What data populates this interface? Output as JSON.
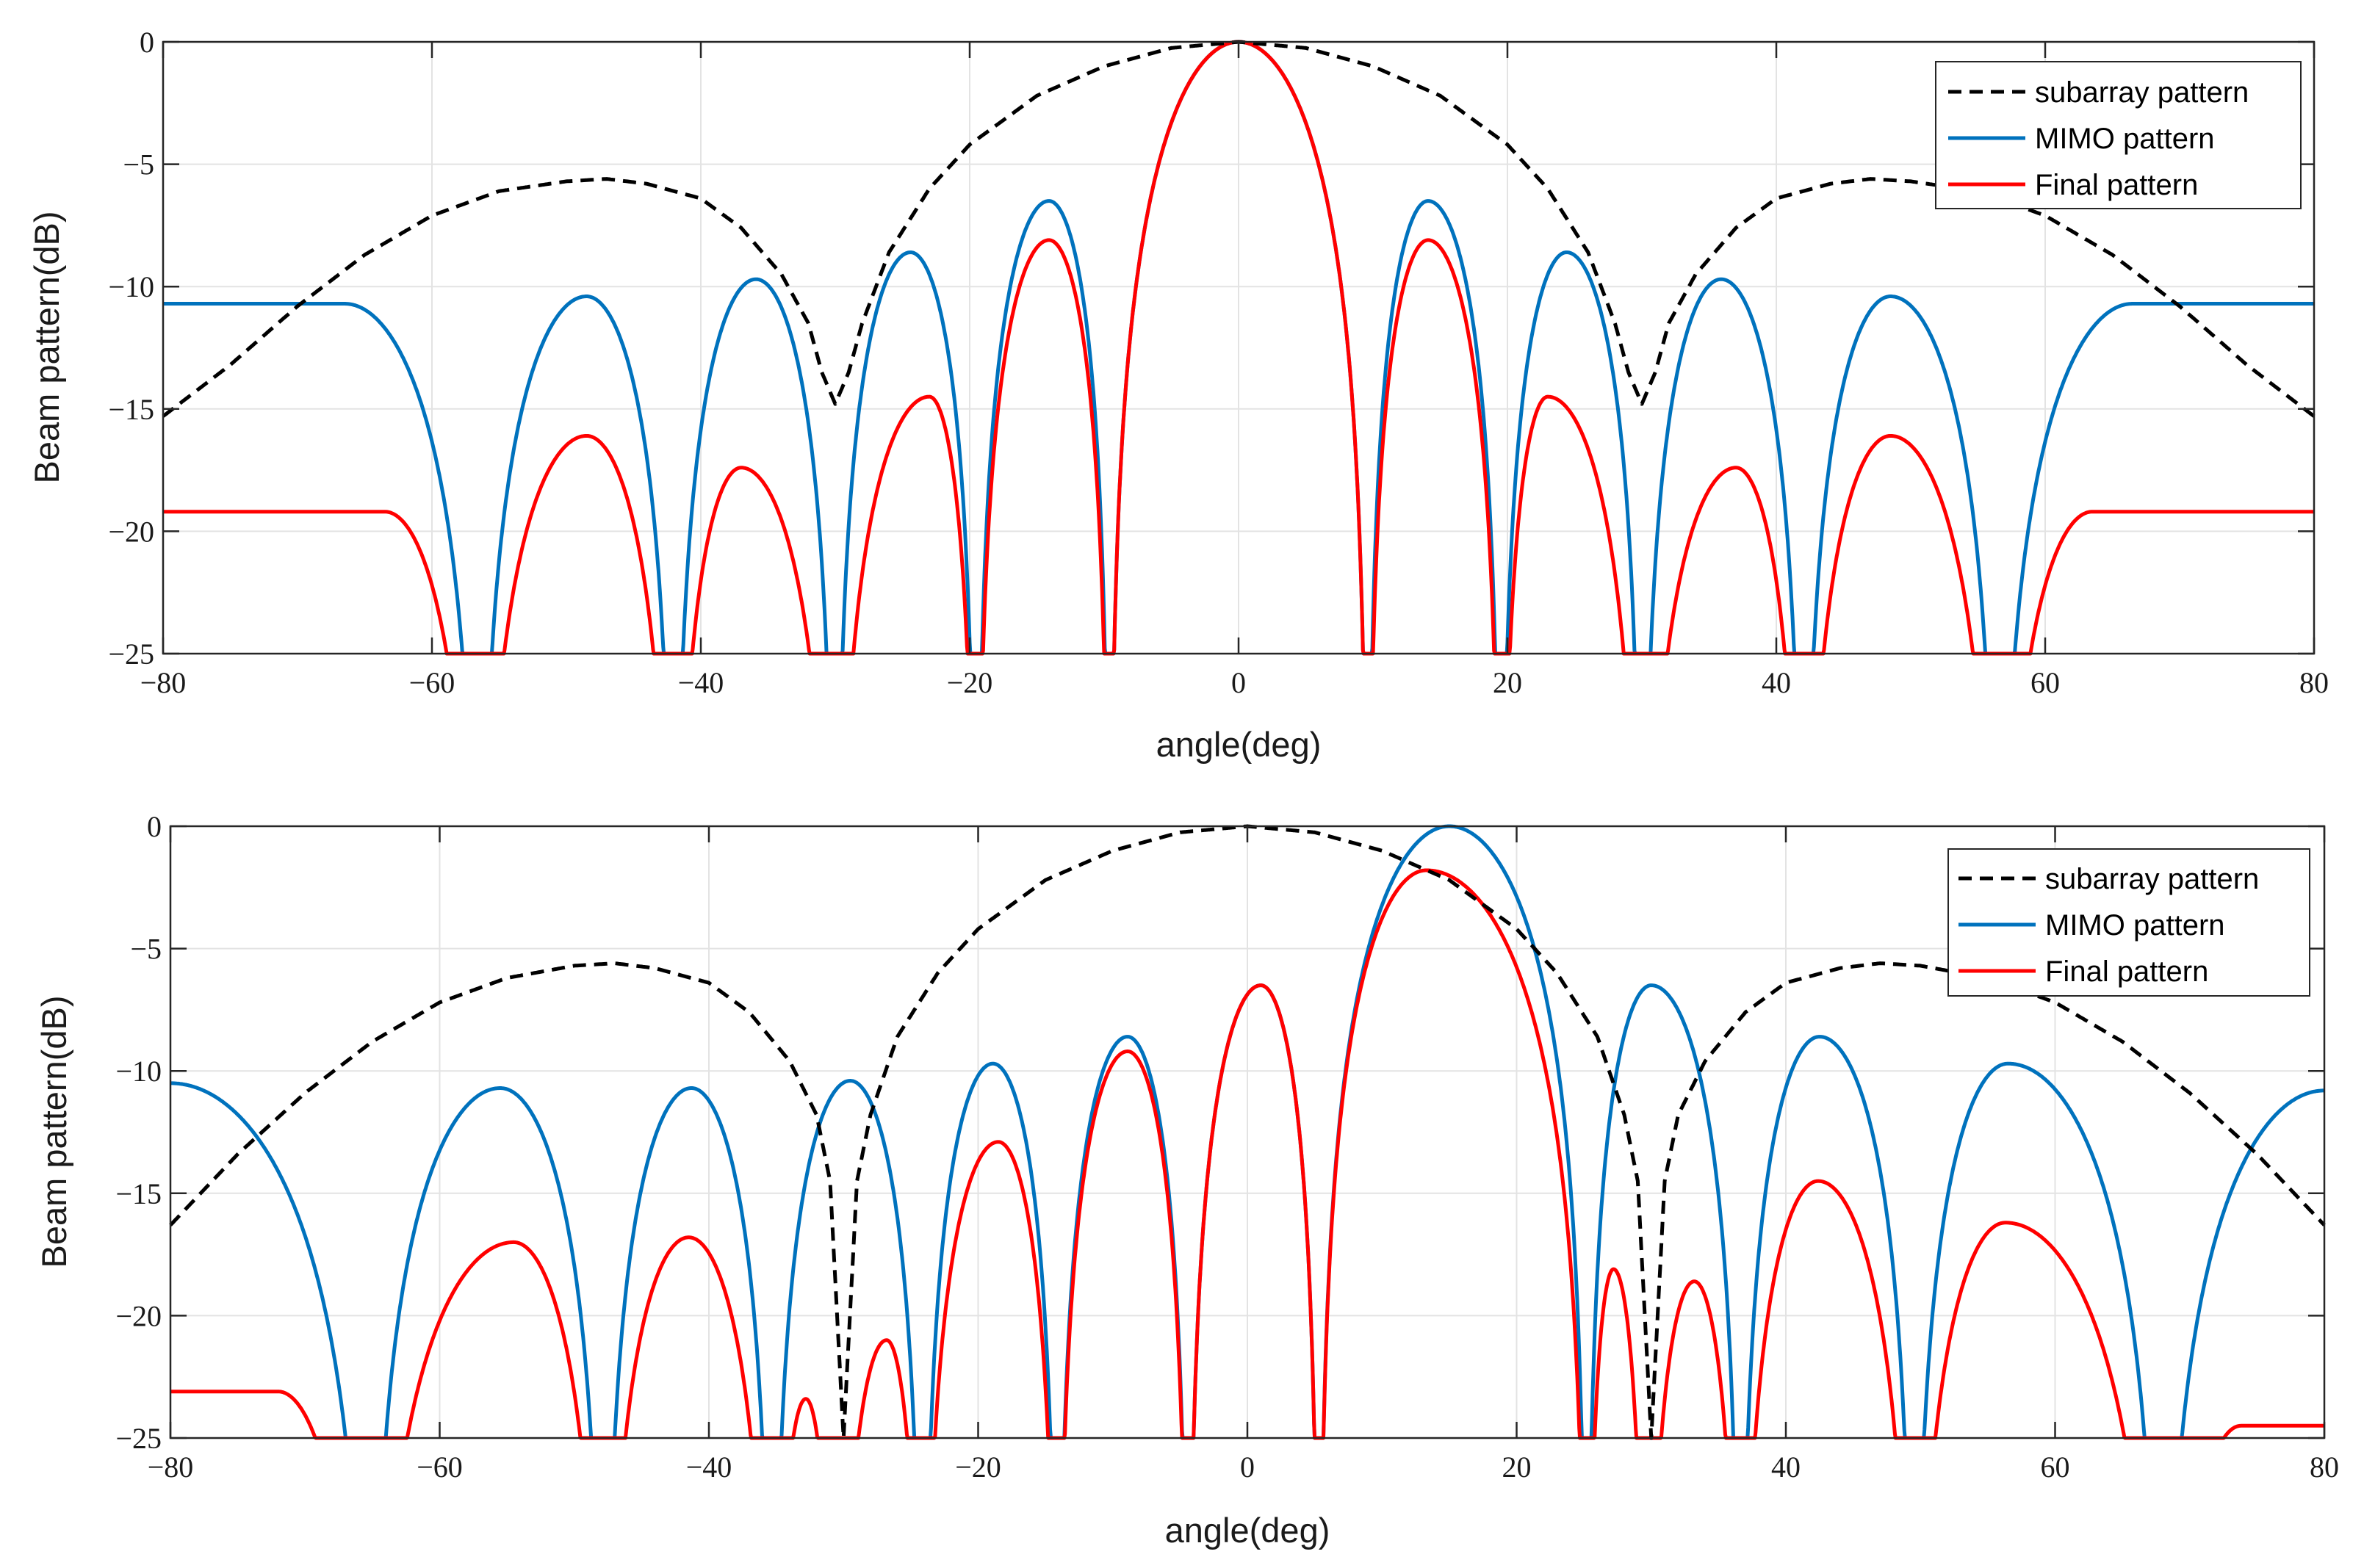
{
  "chart_data": [
    {
      "type": "line",
      "title": "",
      "xlabel": "angle(deg)",
      "ylabel": "Beam pattern(dB)",
      "xlim": [
        -80,
        80
      ],
      "ylim": [
        -25,
        0
      ],
      "xticks": [
        -80,
        -60,
        -40,
        -20,
        0,
        20,
        40,
        60,
        80
      ],
      "yticks": [
        -25,
        -20,
        -15,
        -10,
        -5,
        0
      ],
      "xtick_labels": [
        "−80",
        "−60",
        "−40",
        "−20",
        "0",
        "20",
        "40",
        "60",
        "80"
      ],
      "ytick_labels": [
        "−25",
        "−20",
        "−15",
        "−10",
        "−5",
        "0"
      ],
      "grid": true,
      "legend_position": "top-right",
      "steer_angle_deg": 0,
      "series": [
        {
          "name": "subarray pattern",
          "color": "#000000",
          "style": "dashed",
          "x": [
            -80,
            -75,
            -70,
            -65,
            -60,
            -55,
            -50,
            -47,
            -44,
            -40,
            -37,
            -34,
            -32,
            -31,
            -30,
            -29,
            -28,
            -26,
            -23,
            -20,
            -15,
            -10,
            -5,
            0,
            5,
            10,
            15,
            20,
            23,
            26,
            28,
            29,
            30,
            31,
            32,
            34,
            37,
            40,
            44,
            47,
            50,
            55,
            60,
            65,
            70,
            75,
            80
          ],
          "y": [
            -15.3,
            -13.2,
            -10.8,
            -8.7,
            -7.1,
            -6.1,
            -5.7,
            -5.6,
            -5.8,
            -6.4,
            -7.6,
            -9.5,
            -11.5,
            -13.5,
            -14.8,
            -13.5,
            -11.5,
            -8.6,
            -6.0,
            -4.2,
            -2.2,
            -1.0,
            -0.25,
            0,
            -0.25,
            -1.0,
            -2.2,
            -4.2,
            -6.0,
            -8.6,
            -11.5,
            -13.5,
            -14.8,
            -13.5,
            -11.5,
            -9.5,
            -7.6,
            -6.4,
            -5.8,
            -5.6,
            -5.7,
            -6.1,
            -7.1,
            -8.7,
            -10.8,
            -13.2,
            -15.3
          ]
        },
        {
          "name": "MIMO pattern",
          "color": "#0072BD",
          "style": "solid",
          "nulls": [
            -56.5,
            -42,
            -30,
            -19.5,
            -9.6,
            9.6,
            19.5,
            30,
            42,
            56.5
          ],
          "lobes": [
            {
              "x": -66.5,
              "y": -10.7
            },
            {
              "x": -48.5,
              "y": -10.4
            },
            {
              "x": -35.9,
              "y": -9.7
            },
            {
              "x": -24.4,
              "y": -8.6
            },
            {
              "x": -14.1,
              "y": -6.5
            },
            {
              "x": 0,
              "y": 0
            },
            {
              "x": 14.1,
              "y": -6.5
            },
            {
              "x": 24.4,
              "y": -8.6
            },
            {
              "x": 35.9,
              "y": -9.7
            },
            {
              "x": 48.5,
              "y": -10.4
            },
            {
              "x": 66.5,
              "y": -10.7
            }
          ]
        },
        {
          "name": "Final pattern",
          "color": "#FF0000",
          "style": "solid",
          "nulls": [
            -56.5,
            -42,
            -30,
            -19.5,
            -9.6,
            9.6,
            19.5,
            30,
            42,
            56.5
          ],
          "lobes": [
            {
              "x": -63.5,
              "y": -19.2
            },
            {
              "x": -48.5,
              "y": -16.1
            },
            {
              "x": -37.0,
              "y": -17.4
            },
            {
              "x": -23.0,
              "y": -14.5
            },
            {
              "x": -14.1,
              "y": -8.1
            },
            {
              "x": 0,
              "y": 0
            },
            {
              "x": 14.1,
              "y": -8.1
            },
            {
              "x": 23.0,
              "y": -14.5
            },
            {
              "x": 37.0,
              "y": -17.4
            },
            {
              "x": 48.5,
              "y": -16.1
            },
            {
              "x": 63.5,
              "y": -19.2
            }
          ]
        }
      ]
    },
    {
      "type": "line",
      "title": "",
      "xlabel": "angle(deg)",
      "ylabel": "Beam pattern(dB)",
      "xlim": [
        -80,
        80
      ],
      "ylim": [
        -25,
        0
      ],
      "xticks": [
        -80,
        -60,
        -40,
        -20,
        0,
        20,
        40,
        60,
        80
      ],
      "yticks": [
        -25,
        -20,
        -15,
        -10,
        -5,
        0
      ],
      "xtick_labels": [
        "−80",
        "−60",
        "−40",
        "−20",
        "0",
        "20",
        "40",
        "60",
        "80"
      ],
      "ytick_labels": [
        "−25",
        "−20",
        "−15",
        "−10",
        "−5",
        "0"
      ],
      "grid": true,
      "legend_position": "top-right",
      "steer_angle_deg": 15,
      "series": [
        {
          "name": "subarray pattern",
          "color": "#000000",
          "style": "dashed",
          "x": [
            -80,
            -75,
            -70,
            -65,
            -60,
            -55,
            -50,
            -47,
            -44,
            -40,
            -37,
            -34,
            -32,
            -31,
            -30,
            -29,
            -28,
            -26,
            -23,
            -20,
            -15,
            -10,
            -5,
            0,
            5,
            10,
            15,
            20,
            23,
            26,
            28,
            29,
            30,
            31,
            32,
            34,
            37,
            40,
            44,
            47,
            50,
            55,
            60,
            65,
            70,
            75,
            80
          ],
          "y": [
            -16.3,
            -13.4,
            -10.9,
            -8.8,
            -7.2,
            -6.2,
            -5.7,
            -5.6,
            -5.8,
            -6.4,
            -7.6,
            -9.6,
            -11.8,
            -14.5,
            -25,
            -14.5,
            -11.8,
            -8.6,
            -6.0,
            -4.2,
            -2.2,
            -1.0,
            -0.25,
            0,
            -0.25,
            -1.0,
            -2.2,
            -4.2,
            -6.0,
            -8.6,
            -11.8,
            -14.5,
            -25,
            -14.5,
            -11.8,
            -9.6,
            -7.6,
            -6.4,
            -5.8,
            -5.6,
            -5.7,
            -6.2,
            -7.2,
            -8.8,
            -10.9,
            -13.4,
            -16.3
          ]
        },
        {
          "name": "MIMO pattern",
          "color": "#0072BD",
          "style": "solid",
          "nulls": [
            -65.2,
            -47.8,
            -35.3,
            -24.1,
            -14.1,
            -4.4,
            5.3,
            25.2,
            36.6,
            49.5,
            67.9
          ],
          "lobes": [
            {
              "x": -80,
              "y": -10.5
            },
            {
              "x": -55.5,
              "y": -10.7
            },
            {
              "x": -41.3,
              "y": -10.7
            },
            {
              "x": -29.5,
              "y": -10.4
            },
            {
              "x": -18.9,
              "y": -9.7
            },
            {
              "x": -8.9,
              "y": -8.6
            },
            {
              "x": 1.0,
              "y": -6.5
            },
            {
              "x": 15.0,
              "y": 0
            },
            {
              "x": 30.0,
              "y": -6.5
            },
            {
              "x": 42.5,
              "y": -8.6
            },
            {
              "x": 56.5,
              "y": -9.7
            },
            {
              "x": 80,
              "y": -10.8
            }
          ]
        },
        {
          "name": "Final pattern",
          "color": "#FF0000",
          "style": "solid",
          "nulls": [
            -65.2,
            -47.8,
            -35.3,
            -30.5,
            -24.1,
            -14.1,
            -4.4,
            5.3,
            25.2,
            29.6,
            36.6,
            49.5,
            67.9
          ],
          "lobes": [
            {
              "x": -72.0,
              "y": -23.1
            },
            {
              "x": -54.5,
              "y": -17.0
            },
            {
              "x": -41.5,
              "y": -16.8
            },
            {
              "x": -32.8,
              "y": -23.4
            },
            {
              "x": -26.8,
              "y": -21.0
            },
            {
              "x": -18.5,
              "y": -12.9
            },
            {
              "x": -8.9,
              "y": -9.2
            },
            {
              "x": 1.0,
              "y": -6.5
            },
            {
              "x": 13.3,
              "y": -1.8
            },
            {
              "x": 27.2,
              "y": -18.1
            },
            {
              "x": 33.2,
              "y": -18.6
            },
            {
              "x": 42.4,
              "y": -14.5
            },
            {
              "x": 56.3,
              "y": -16.2
            },
            {
              "x": 73.8,
              "y": -24.5
            }
          ]
        }
      ]
    }
  ]
}
